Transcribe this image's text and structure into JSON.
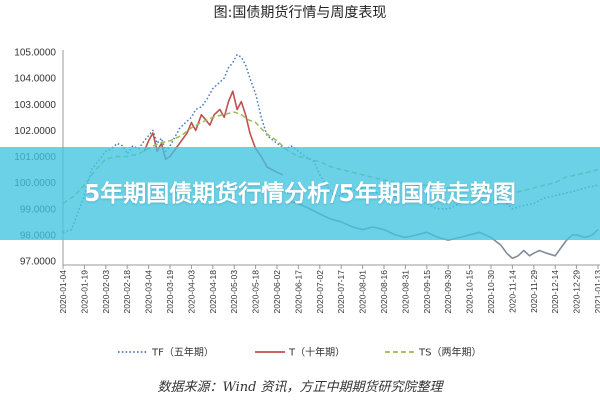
{
  "chart_data": {
    "type": "line",
    "title": "图:国债期货行情与周度表现",
    "ylim": [
      97.0,
      105.0
    ],
    "y_ticks": [
      "97.0000",
      "98.0000",
      "99.0000",
      "100.0000",
      "101.0000",
      "102.0000",
      "103.0000",
      "104.0000",
      "105.0000"
    ],
    "x_ticks": [
      "2020-01-04",
      "2020-01-19",
      "2020-02-03",
      "2020-02-18",
      "2020-03-04",
      "2020-03-19",
      "2020-04-03",
      "2020-04-18",
      "2020-05-03",
      "2020-05-18",
      "2020-06-02",
      "2020-06-17",
      "2020-07-02",
      "2020-07-17",
      "2020-08-01",
      "2020-08-16",
      "2020-08-31",
      "2020-09-15",
      "2020-09-30",
      "2020-10-15",
      "2020-10-30",
      "2020-11-14",
      "2020-11-29",
      "2020-12-14",
      "2020-12-29",
      "2021-01-13"
    ],
    "grid": false,
    "legend_position": "bottom",
    "x_start": "2020-01-04",
    "series": [
      {
        "name": "TF（五年期）",
        "style": "dotted",
        "color": "#4a7ebb",
        "points": [
          [
            "2020-01-04",
            98.1
          ],
          [
            "2020-01-10",
            98.2
          ],
          [
            "2020-01-14",
            98.8
          ],
          [
            "2020-01-19",
            99.5
          ],
          [
            "2020-01-24",
            100.5
          ],
          [
            "2020-02-03",
            101.2
          ],
          [
            "2020-02-07",
            101.3
          ],
          [
            "2020-02-11",
            101.5
          ],
          [
            "2020-02-15",
            101.4
          ],
          [
            "2020-02-18",
            101.1
          ],
          [
            "2020-02-22",
            101.4
          ],
          [
            "2020-02-26",
            101.3
          ],
          [
            "2020-03-01",
            101.6
          ],
          [
            "2020-03-04",
            101.8
          ],
          [
            "2020-03-07",
            102.0
          ],
          [
            "2020-03-10",
            101.5
          ],
          [
            "2020-03-13",
            101.7
          ],
          [
            "2020-03-16",
            101.2
          ],
          [
            "2020-03-19",
            101.4
          ],
          [
            "2020-03-23",
            101.8
          ],
          [
            "2020-03-26",
            102.1
          ],
          [
            "2020-03-30",
            102.3
          ],
          [
            "2020-04-03",
            102.5
          ],
          [
            "2020-04-06",
            102.8
          ],
          [
            "2020-04-10",
            102.9
          ],
          [
            "2020-04-14",
            103.2
          ],
          [
            "2020-04-18",
            103.6
          ],
          [
            "2020-04-22",
            103.8
          ],
          [
            "2020-04-26",
            104.0
          ],
          [
            "2020-04-29",
            104.4
          ],
          [
            "2020-05-02",
            104.6
          ],
          [
            "2020-05-05",
            104.9
          ],
          [
            "2020-05-08",
            104.8
          ],
          [
            "2020-05-11",
            104.5
          ],
          [
            "2020-05-14",
            104.0
          ],
          [
            "2020-05-18",
            103.4
          ],
          [
            "2020-05-22",
            102.5
          ],
          [
            "2020-05-26",
            101.8
          ],
          [
            "2020-06-02",
            101.5
          ],
          [
            "2020-06-08",
            101.3
          ],
          [
            "2020-06-12",
            101.4
          ],
          [
            "2020-06-17",
            101.2
          ],
          [
            "2020-06-22",
            101.0
          ],
          [
            "2020-06-28",
            100.8
          ],
          [
            "2020-07-02",
            100.3
          ],
          [
            "2020-07-08",
            99.8
          ],
          [
            "2020-07-12",
            99.5
          ],
          [
            "2020-07-17",
            99.5
          ],
          [
            "2020-07-22",
            99.8
          ],
          [
            "2020-07-27",
            99.7
          ],
          [
            "2020-08-01",
            99.8
          ],
          [
            "2020-08-06",
            99.9
          ],
          [
            "2020-08-11",
            99.6
          ],
          [
            "2020-08-16",
            99.6
          ],
          [
            "2020-08-22",
            99.5
          ],
          [
            "2020-08-31",
            99.4
          ],
          [
            "2020-09-08",
            99.3
          ],
          [
            "2020-09-15",
            99.2
          ],
          [
            "2020-09-22",
            99.0
          ],
          [
            "2020-09-30",
            99.0
          ],
          [
            "2020-10-08",
            99.2
          ],
          [
            "2020-10-15",
            99.3
          ],
          [
            "2020-10-22",
            99.3
          ],
          [
            "2020-10-30",
            99.3
          ],
          [
            "2020-11-06",
            99.4
          ],
          [
            "2020-11-14",
            99.0
          ],
          [
            "2020-11-20",
            99.1
          ],
          [
            "2020-11-29",
            99.2
          ],
          [
            "2020-12-06",
            99.4
          ],
          [
            "2020-12-14",
            99.5
          ],
          [
            "2020-12-21",
            99.6
          ],
          [
            "2020-12-29",
            99.7
          ],
          [
            "2021-01-04",
            99.8
          ],
          [
            "2021-01-13",
            99.9
          ]
        ]
      },
      {
        "name": "T（十年期）",
        "style": "solid",
        "color": "#c0504d",
        "points": [
          [
            "2020-03-01",
            101.2
          ],
          [
            "2020-03-04",
            101.6
          ],
          [
            "2020-03-07",
            101.9
          ],
          [
            "2020-03-10",
            101.2
          ],
          [
            "2020-03-13",
            101.5
          ],
          [
            "2020-03-16",
            100.9
          ],
          [
            "2020-03-19",
            101.0
          ],
          [
            "2020-03-23",
            101.3
          ],
          [
            "2020-03-27",
            101.6
          ],
          [
            "2020-03-31",
            101.9
          ],
          [
            "2020-04-03",
            102.3
          ],
          [
            "2020-04-06",
            102.0
          ],
          [
            "2020-04-10",
            102.6
          ],
          [
            "2020-04-13",
            102.4
          ],
          [
            "2020-04-16",
            102.2
          ],
          [
            "2020-04-19",
            102.6
          ],
          [
            "2020-04-23",
            102.8
          ],
          [
            "2020-04-26",
            102.5
          ],
          [
            "2020-04-29",
            103.1
          ],
          [
            "2020-05-02",
            103.5
          ],
          [
            "2020-05-05",
            102.8
          ],
          [
            "2020-05-08",
            103.1
          ],
          [
            "2020-05-11",
            102.6
          ],
          [
            "2020-05-14",
            101.9
          ],
          [
            "2020-05-18",
            101.3
          ],
          [
            "2020-05-22",
            101.0
          ],
          [
            "2020-05-26",
            100.6
          ],
          [
            "2020-06-02",
            100.4
          ],
          [
            "2020-06-06",
            100.3
          ]
        ]
      },
      {
        "name": "TS（两年期）",
        "style": "dashed",
        "color": "#9bbb59",
        "points": [
          [
            "2020-01-04",
            99.2
          ],
          [
            "2020-01-12",
            99.5
          ],
          [
            "2020-01-19",
            99.9
          ],
          [
            "2020-01-27",
            100.5
          ],
          [
            "2020-02-03",
            100.9
          ],
          [
            "2020-02-10",
            101.0
          ],
          [
            "2020-02-18",
            101.0
          ],
          [
            "2020-02-26",
            101.1
          ],
          [
            "2020-03-04",
            101.3
          ],
          [
            "2020-03-11",
            101.5
          ],
          [
            "2020-03-19",
            101.6
          ],
          [
            "2020-03-27",
            101.8
          ],
          [
            "2020-04-03",
            102.1
          ],
          [
            "2020-04-10",
            102.3
          ],
          [
            "2020-04-18",
            102.5
          ],
          [
            "2020-04-25",
            102.6
          ],
          [
            "2020-05-03",
            102.7
          ],
          [
            "2020-05-08",
            102.6
          ],
          [
            "2020-05-13",
            102.4
          ],
          [
            "2020-05-18",
            102.3
          ],
          [
            "2020-05-25",
            101.9
          ],
          [
            "2020-06-02",
            101.6
          ],
          [
            "2020-06-10",
            101.2
          ],
          [
            "2020-06-17",
            101.0
          ],
          [
            "2020-06-25",
            100.9
          ],
          [
            "2020-07-02",
            100.8
          ],
          [
            "2020-07-10",
            100.6
          ],
          [
            "2020-07-17",
            100.5
          ],
          [
            "2020-07-25",
            100.4
          ],
          [
            "2020-08-01",
            100.3
          ],
          [
            "2020-08-08",
            100.2
          ],
          [
            "2020-08-16",
            100.1
          ],
          [
            "2020-08-24",
            100.0
          ],
          [
            "2020-08-31",
            100.0
          ],
          [
            "2020-09-08",
            99.9
          ],
          [
            "2020-09-15",
            99.9
          ],
          [
            "2020-09-23",
            99.8
          ],
          [
            "2020-09-30",
            99.8
          ],
          [
            "2020-10-08",
            99.9
          ],
          [
            "2020-10-15",
            99.9
          ],
          [
            "2020-10-22",
            99.9
          ],
          [
            "2020-10-30",
            99.8
          ],
          [
            "2020-11-06",
            99.7
          ],
          [
            "2020-11-14",
            99.6
          ],
          [
            "2020-11-22",
            99.7
          ],
          [
            "2020-11-29",
            99.8
          ],
          [
            "2020-12-06",
            99.9
          ],
          [
            "2020-12-14",
            100.0
          ],
          [
            "2020-12-21",
            100.2
          ],
          [
            "2020-12-29",
            100.3
          ],
          [
            "2021-01-06",
            100.4
          ],
          [
            "2021-01-13",
            100.5
          ]
        ]
      },
      {
        "name": "",
        "style": "solid",
        "color": "#7f8c99",
        "points": [
          [
            "2020-06-10",
            99.3
          ],
          [
            "2020-06-17",
            99.2
          ],
          [
            "2020-06-25",
            99.0
          ],
          [
            "2020-07-02",
            98.8
          ],
          [
            "2020-07-10",
            98.6
          ],
          [
            "2020-07-17",
            98.5
          ],
          [
            "2020-07-25",
            98.3
          ],
          [
            "2020-08-01",
            98.2
          ],
          [
            "2020-08-08",
            98.3
          ],
          [
            "2020-08-16",
            98.2
          ],
          [
            "2020-08-24",
            98.0
          ],
          [
            "2020-08-31",
            97.9
          ],
          [
            "2020-09-08",
            98.0
          ],
          [
            "2020-09-15",
            98.1
          ],
          [
            "2020-09-23",
            97.9
          ],
          [
            "2020-09-30",
            97.8
          ],
          [
            "2020-10-08",
            97.9
          ],
          [
            "2020-10-15",
            98.0
          ],
          [
            "2020-10-22",
            98.1
          ],
          [
            "2020-10-30",
            97.9
          ],
          [
            "2020-11-06",
            97.6
          ],
          [
            "2020-11-10",
            97.3
          ],
          [
            "2020-11-14",
            97.1
          ],
          [
            "2020-11-18",
            97.2
          ],
          [
            "2020-11-22",
            97.4
          ],
          [
            "2020-11-26",
            97.2
          ],
          [
            "2020-11-29",
            97.3
          ],
          [
            "2020-12-03",
            97.4
          ],
          [
            "2020-12-08",
            97.3
          ],
          [
            "2020-12-14",
            97.2
          ],
          [
            "2020-12-18",
            97.5
          ],
          [
            "2020-12-22",
            97.8
          ],
          [
            "2020-12-26",
            98.0
          ],
          [
            "2020-12-29",
            98.0
          ],
          [
            "2021-01-04",
            97.9
          ],
          [
            "2021-01-09",
            98.0
          ],
          [
            "2021-01-13",
            98.2
          ]
        ]
      }
    ]
  },
  "banner": {
    "text": "5年期国债期货行情分析/5年期国债走势图"
  },
  "footer": {
    "source": "数据来源：Wind 资讯，方正中期期货研究院整理"
  }
}
